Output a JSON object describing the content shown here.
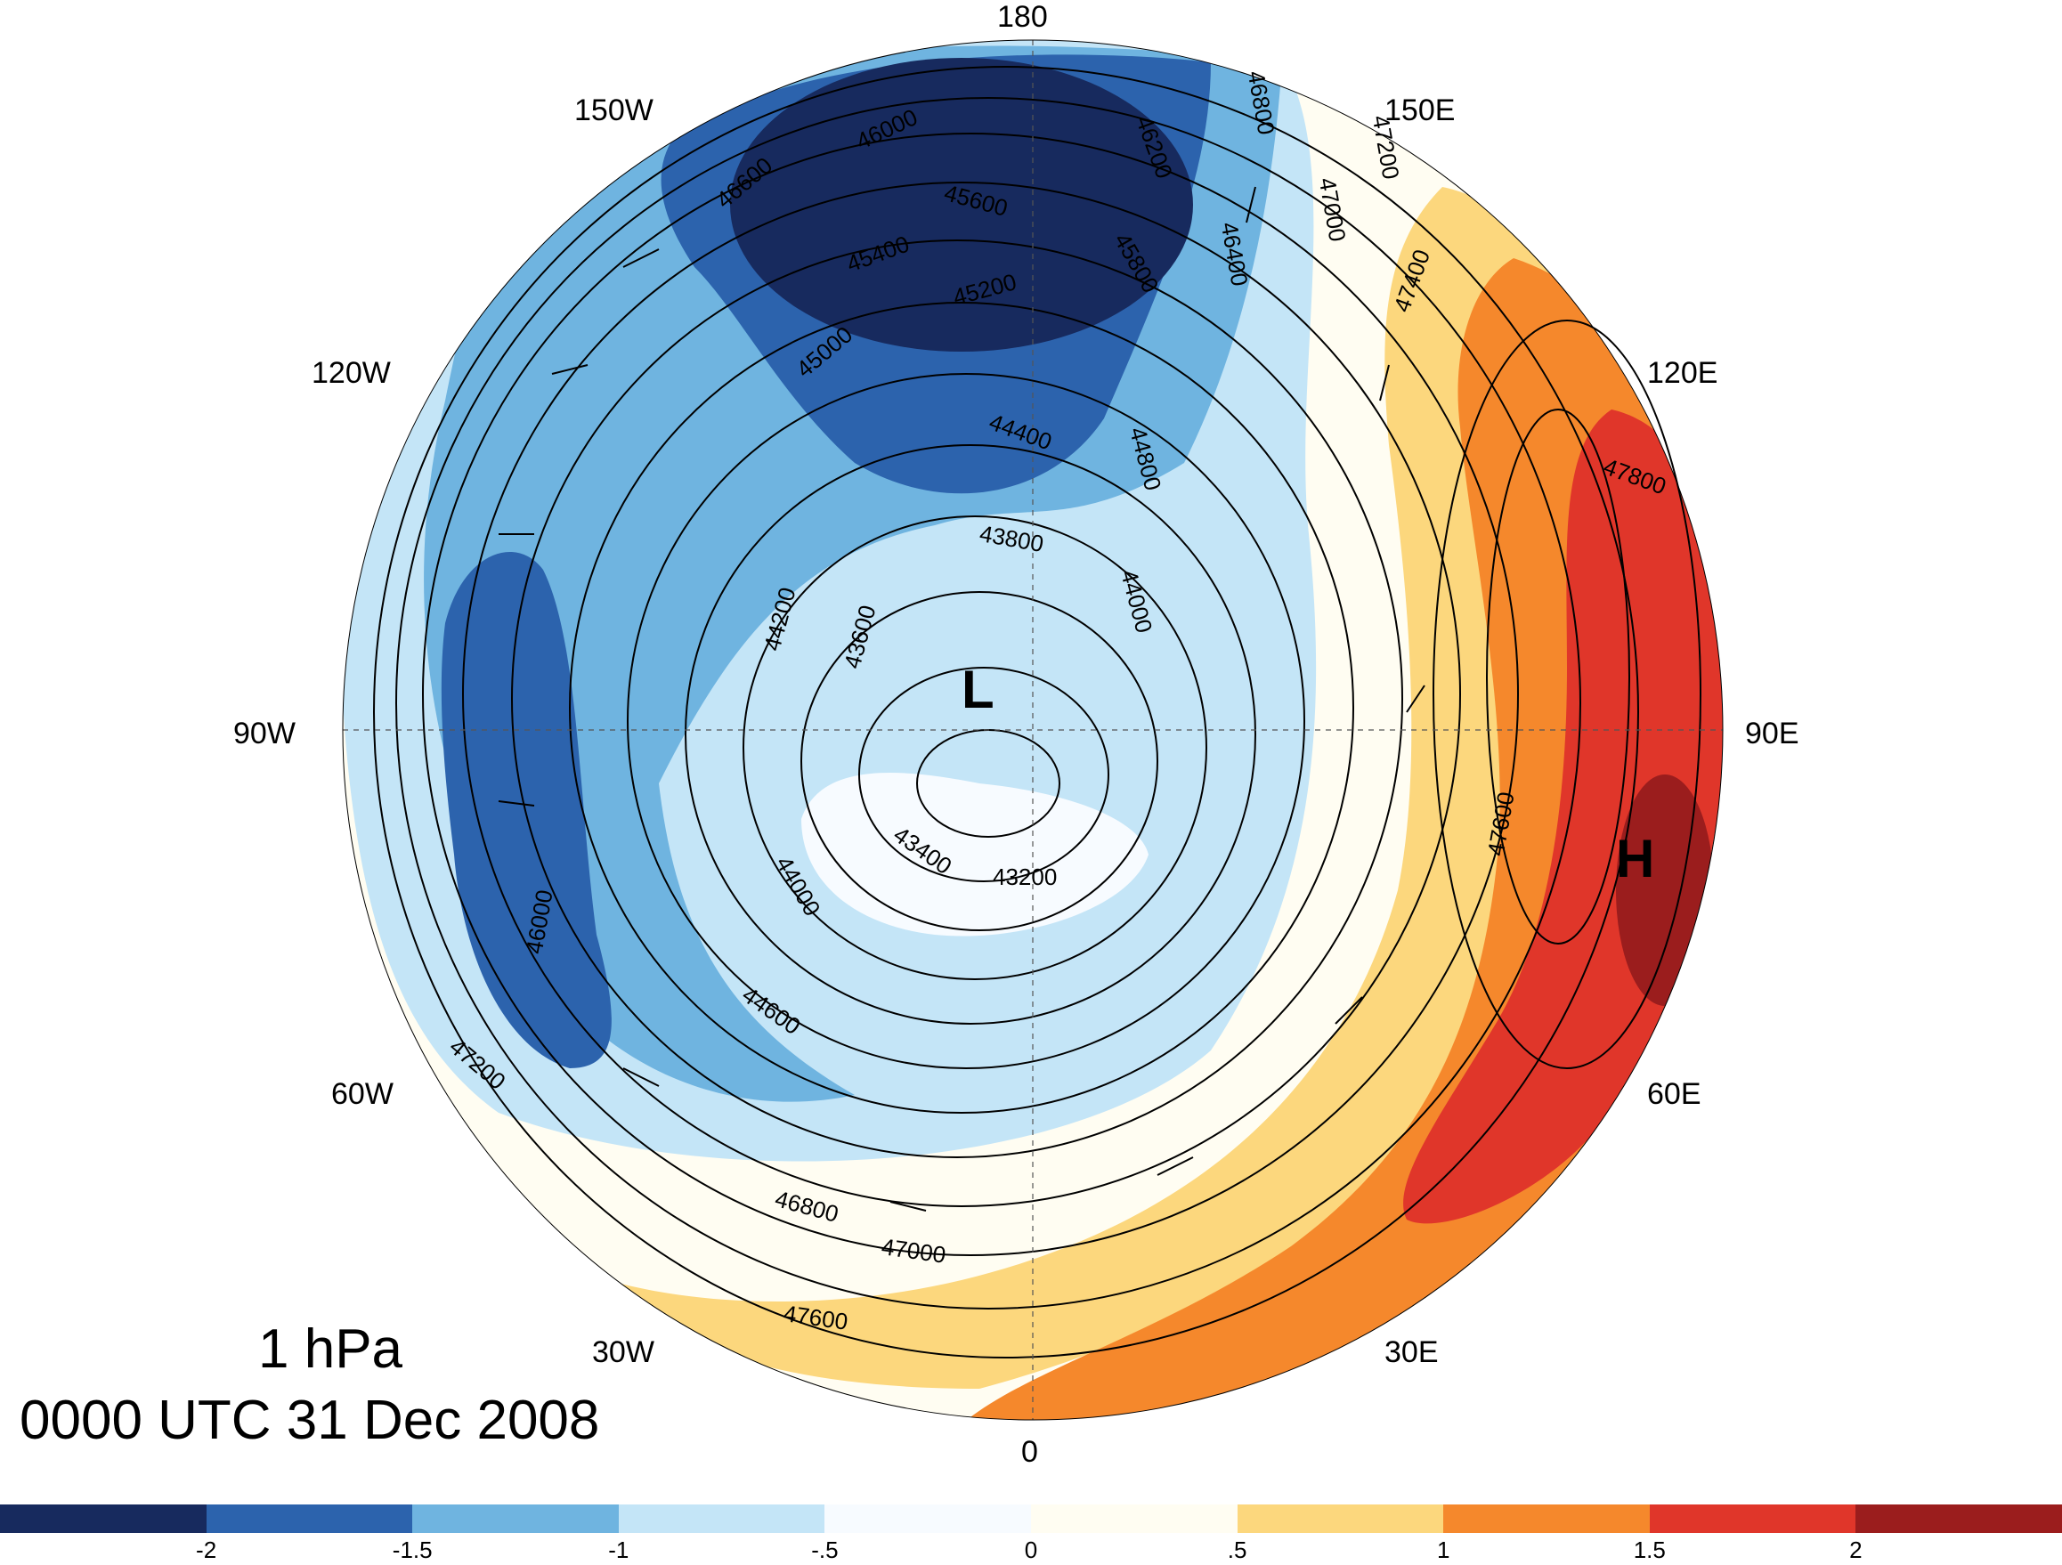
{
  "title": {
    "level": "1 hPa",
    "time": "0000 UTC 31 Dec 2008"
  },
  "longitude_labels": [
    "180",
    "150E",
    "120E",
    "90E",
    "60E",
    "30E",
    "0",
    "30W",
    "60W",
    "90W",
    "120W",
    "150W"
  ],
  "centers": [
    {
      "symbol": "L"
    },
    {
      "symbol": "H"
    }
  ],
  "contour_labels": [
    "46000",
    "46200",
    "46800",
    "47200",
    "45600",
    "45400",
    "45200",
    "45800",
    "46400",
    "47000",
    "46600",
    "45000",
    "44400",
    "44800",
    "43800",
    "44000",
    "46000",
    "47400",
    "47600",
    "47800",
    "43600",
    "44200",
    "43400",
    "43200",
    "44600",
    "46800",
    "47000",
    "47200",
    "47600",
    "44000"
  ],
  "colorbar": {
    "colors": [
      "#172a5e",
      "#2c63ad",
      "#6fb4e0",
      "#c4e5f7",
      "#f7fbff",
      "#fffdf2",
      "#fcd77d",
      "#f5882c",
      "#e0362a",
      "#9b1d1d"
    ],
    "tick_labels": [
      "-2",
      "-1.5",
      "-1",
      "-.5",
      "0",
      ".5",
      "1",
      "1.5",
      "2"
    ]
  },
  "colors": {
    "contour": "#000000",
    "background": "#ffffff"
  }
}
